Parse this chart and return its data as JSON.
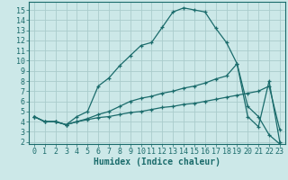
{
  "xlabel": "Humidex (Indice chaleur)",
  "bg_color": "#cce8e8",
  "grid_color": "#aacccc",
  "line_color": "#1a6b6b",
  "x_ticks": [
    0,
    1,
    2,
    3,
    4,
    5,
    6,
    7,
    8,
    9,
    10,
    11,
    12,
    13,
    14,
    15,
    16,
    17,
    18,
    19,
    20,
    21,
    22,
    23
  ],
  "y_ticks": [
    2,
    3,
    4,
    5,
    6,
    7,
    8,
    9,
    10,
    11,
    12,
    13,
    14,
    15
  ],
  "ylim": [
    1.8,
    15.8
  ],
  "xlim": [
    -0.5,
    23.5
  ],
  "line1_x": [
    0,
    1,
    2,
    3,
    4,
    5,
    6,
    7,
    8,
    9,
    10,
    11,
    12,
    13,
    14,
    15,
    16,
    17,
    18,
    19,
    20,
    21,
    22,
    23
  ],
  "line1_y": [
    4.5,
    4.0,
    4.0,
    3.7,
    4.5,
    5.0,
    7.5,
    8.3,
    9.5,
    10.5,
    11.5,
    11.8,
    13.3,
    14.8,
    15.2,
    15.0,
    14.8,
    13.2,
    11.8,
    9.7,
    5.5,
    4.5,
    2.7,
    1.8
  ],
  "line2_x": [
    0,
    1,
    2,
    3,
    4,
    5,
    6,
    7,
    8,
    9,
    10,
    11,
    12,
    13,
    14,
    15,
    16,
    17,
    18,
    19,
    20,
    21,
    22,
    23
  ],
  "line2_y": [
    4.5,
    4.0,
    4.0,
    3.7,
    4.0,
    4.3,
    4.7,
    5.0,
    5.5,
    6.0,
    6.3,
    6.5,
    6.8,
    7.0,
    7.3,
    7.5,
    7.8,
    8.2,
    8.5,
    9.7,
    4.5,
    3.5,
    8.0,
    2.0
  ],
  "line3_x": [
    0,
    1,
    2,
    3,
    4,
    5,
    6,
    7,
    8,
    9,
    10,
    11,
    12,
    13,
    14,
    15,
    16,
    17,
    18,
    19,
    20,
    21,
    22,
    23
  ],
  "line3_y": [
    4.5,
    4.0,
    4.0,
    3.7,
    4.0,
    4.2,
    4.4,
    4.5,
    4.7,
    4.9,
    5.0,
    5.2,
    5.4,
    5.5,
    5.7,
    5.8,
    6.0,
    6.2,
    6.4,
    6.6,
    6.8,
    7.0,
    7.5,
    3.2
  ],
  "tick_fontsize": 6,
  "label_fontsize": 7
}
